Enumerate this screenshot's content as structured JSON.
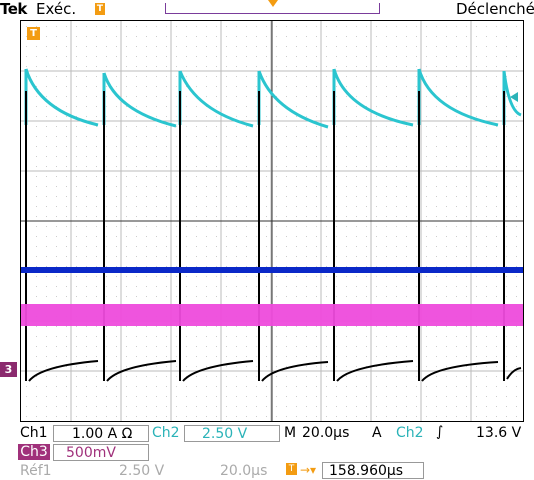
{
  "header": {
    "brand": "Tek",
    "state": "Exéc.",
    "trigger_marker": "T",
    "trigger_label": "Déclenché"
  },
  "screen": {
    "left_marker": "T",
    "ch3_marker": "3"
  },
  "status": {
    "ch1_label": "Ch1",
    "ch1_value": "1.00 A Ω",
    "ch2_label": "Ch2",
    "ch2_value": "2.50 V",
    "time_label": "M",
    "time_value": "20.0µs",
    "trigger_label": "A",
    "trigger_channel": "Ch2",
    "trigger_slope_icon": "rising-edge-icon",
    "trigger_level": "13.6 V",
    "ch3_label": "Ch3",
    "ch3_value": "500mV",
    "ref_label": "Réf1",
    "ref_value": "2.50 V",
    "ref_time": "20.0µs",
    "position_icon": "trigger-position-icon",
    "position_value": "158.960µs"
  },
  "colors": {
    "ch1": "#000000",
    "ch2": "#2bc5cf",
    "ch3": "#a0317b",
    "blue": "#0b28c8",
    "magenta": "#ee4bdc"
  }
}
